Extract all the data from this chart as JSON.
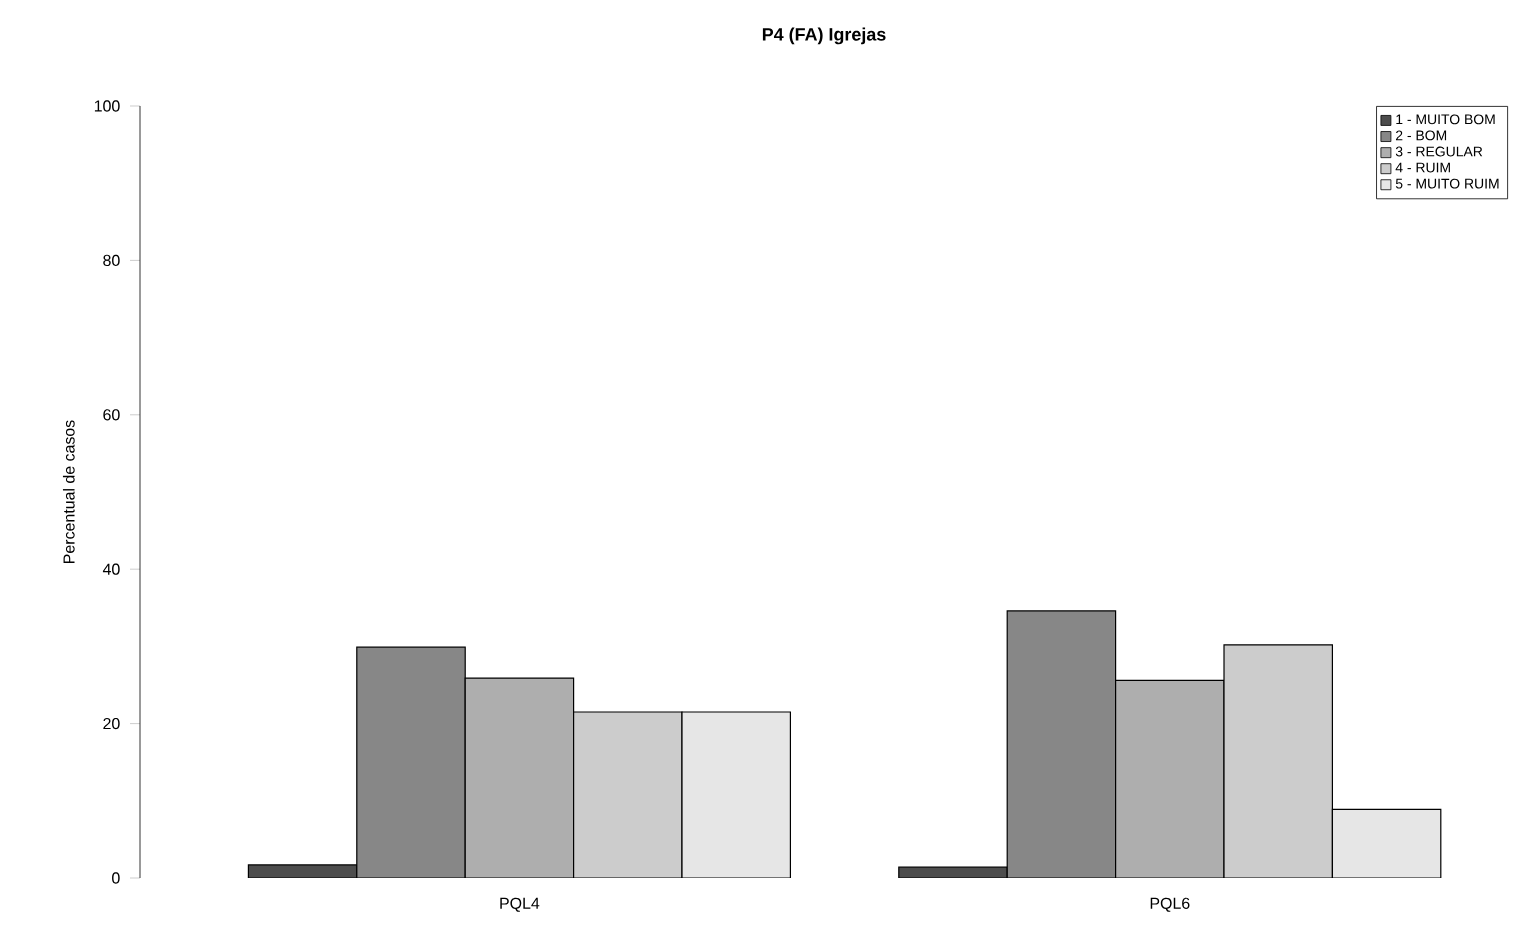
{
  "chart_data": {
    "type": "bar",
    "title": "P4 (FA) Igrejas",
    "ylabel": "Percentual de casos",
    "categories": [
      "PQL4",
      "PQL6"
    ],
    "series": [
      {
        "name": "1 - MUITO BOM",
        "color": "#4d4d4d",
        "values": [
          1.7,
          1.4
        ]
      },
      {
        "name": "2 - BOM",
        "color": "#878787",
        "values": [
          29.9,
          34.6
        ]
      },
      {
        "name": "3 - REGULAR",
        "color": "#aeaeae",
        "values": [
          25.9,
          25.6
        ]
      },
      {
        "name": "4 - RUIM",
        "color": "#cccccc",
        "values": [
          21.5,
          30.2
        ]
      },
      {
        "name": "5 - MUITO RUIM",
        "color": "#e6e6e6",
        "values": [
          21.5,
          8.9
        ]
      }
    ],
    "ylim": [
      0,
      100
    ],
    "yticks": [
      0,
      20,
      40,
      60,
      80,
      100
    ],
    "grid": false,
    "legend": "top right"
  }
}
